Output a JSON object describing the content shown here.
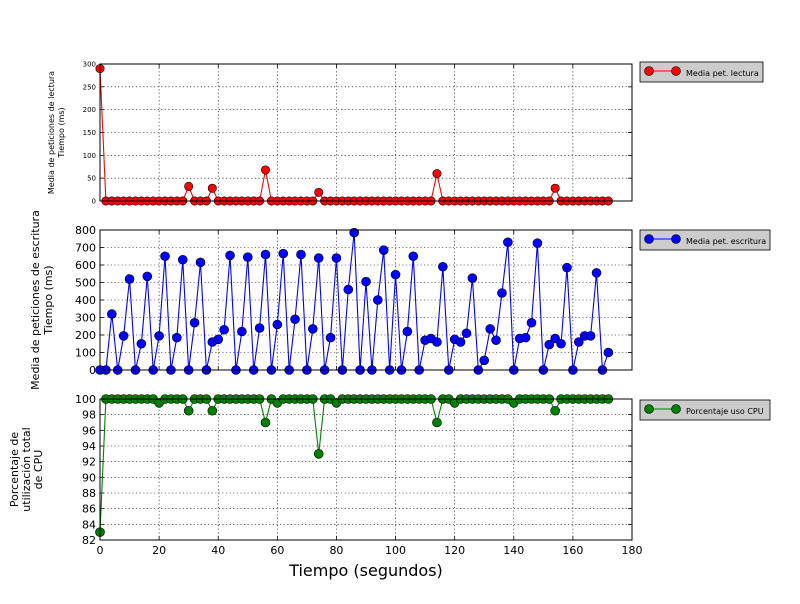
{
  "chart_data": [
    {
      "type": "line",
      "ylabel_lines": [
        "Media de peticiones de lectura",
        "Tiempo (ms)"
      ],
      "xlim": [
        0,
        180
      ],
      "ylim": [
        0,
        300
      ],
      "yticks": [
        0,
        50,
        100,
        150,
        200,
        250,
        300
      ],
      "grid": true,
      "legend_position": "right-outside",
      "series": [
        {
          "name": "Media pet. lectura",
          "color": "#ff0000",
          "points": [
            [
              0,
              290
            ],
            [
              2,
              0
            ],
            [
              4,
              0
            ],
            [
              6,
              0
            ],
            [
              8,
              0
            ],
            [
              10,
              0
            ],
            [
              12,
              0
            ],
            [
              14,
              0
            ],
            [
              16,
              0
            ],
            [
              18,
              0
            ],
            [
              20,
              0
            ],
            [
              22,
              0
            ],
            [
              24,
              0
            ],
            [
              26,
              0
            ],
            [
              28,
              0
            ],
            [
              30,
              32
            ],
            [
              32,
              0
            ],
            [
              34,
              0
            ],
            [
              36,
              0
            ],
            [
              38,
              28
            ],
            [
              40,
              0
            ],
            [
              42,
              0
            ],
            [
              44,
              0
            ],
            [
              46,
              0
            ],
            [
              48,
              0
            ],
            [
              50,
              0
            ],
            [
              52,
              0
            ],
            [
              54,
              0
            ],
            [
              56,
              68
            ],
            [
              58,
              0
            ],
            [
              60,
              0
            ],
            [
              62,
              0
            ],
            [
              64,
              0
            ],
            [
              66,
              0
            ],
            [
              68,
              0
            ],
            [
              70,
              0
            ],
            [
              72,
              0
            ],
            [
              74,
              19
            ],
            [
              76,
              0
            ],
            [
              78,
              0
            ],
            [
              80,
              0
            ],
            [
              82,
              0
            ],
            [
              84,
              0
            ],
            [
              86,
              0
            ],
            [
              88,
              0
            ],
            [
              90,
              0
            ],
            [
              92,
              0
            ],
            [
              94,
              0
            ],
            [
              96,
              0
            ],
            [
              98,
              0
            ],
            [
              100,
              0
            ],
            [
              102,
              0
            ],
            [
              104,
              0
            ],
            [
              106,
              0
            ],
            [
              108,
              0
            ],
            [
              110,
              0
            ],
            [
              112,
              0
            ],
            [
              114,
              60
            ],
            [
              116,
              0
            ],
            [
              118,
              0
            ],
            [
              120,
              0
            ],
            [
              122,
              0
            ],
            [
              124,
              0
            ],
            [
              126,
              0
            ],
            [
              128,
              0
            ],
            [
              130,
              0
            ],
            [
              132,
              0
            ],
            [
              134,
              0
            ],
            [
              136,
              0
            ],
            [
              138,
              0
            ],
            [
              140,
              0
            ],
            [
              142,
              0
            ],
            [
              144,
              0
            ],
            [
              146,
              0
            ],
            [
              148,
              0
            ],
            [
              150,
              0
            ],
            [
              152,
              0
            ],
            [
              154,
              28
            ],
            [
              156,
              0
            ],
            [
              158,
              0
            ],
            [
              160,
              0
            ],
            [
              162,
              0
            ],
            [
              164,
              0
            ],
            [
              166,
              0
            ],
            [
              168,
              0
            ],
            [
              170,
              0
            ],
            [
              172,
              0
            ]
          ]
        }
      ]
    },
    {
      "type": "line",
      "ylabel_lines": [
        "Media de peticiones de escritura",
        "Tiempo (ms)"
      ],
      "xlim": [
        0,
        180
      ],
      "ylim": [
        0,
        800
      ],
      "yticks": [
        0,
        100,
        200,
        300,
        400,
        500,
        600,
        700,
        800
      ],
      "grid": true,
      "legend_position": "right-outside",
      "series": [
        {
          "name": "Media pet. escritura",
          "color": "#0000ff",
          "points": [
            [
              0,
              0
            ],
            [
              2,
              0
            ],
            [
              4,
              320
            ],
            [
              6,
              0
            ],
            [
              8,
              195
            ],
            [
              10,
              520
            ],
            [
              12,
              0
            ],
            [
              14,
              150
            ],
            [
              16,
              535
            ],
            [
              18,
              0
            ],
            [
              20,
              195
            ],
            [
              22,
              650
            ],
            [
              24,
              0
            ],
            [
              26,
              185
            ],
            [
              28,
              630
            ],
            [
              30,
              0
            ],
            [
              32,
              270
            ],
            [
              34,
              615
            ],
            [
              36,
              0
            ],
            [
              38,
              160
            ],
            [
              40,
              175
            ],
            [
              42,
              230
            ],
            [
              44,
              655
            ],
            [
              46,
              0
            ],
            [
              48,
              220
            ],
            [
              50,
              645
            ],
            [
              52,
              0
            ],
            [
              54,
              240
            ],
            [
              56,
              660
            ],
            [
              58,
              0
            ],
            [
              60,
              260
            ],
            [
              62,
              665
            ],
            [
              64,
              0
            ],
            [
              66,
              290
            ],
            [
              68,
              660
            ],
            [
              70,
              0
            ],
            [
              72,
              235
            ],
            [
              74,
              640
            ],
            [
              76,
              0
            ],
            [
              78,
              185
            ],
            [
              80,
              640
            ],
            [
              82,
              0
            ],
            [
              84,
              460
            ],
            [
              86,
              785
            ],
            [
              88,
              0
            ],
            [
              90,
              505
            ],
            [
              92,
              0
            ],
            [
              94,
              400
            ],
            [
              96,
              685
            ],
            [
              98,
              0
            ],
            [
              100,
              545
            ],
            [
              102,
              0
            ],
            [
              104,
              220
            ],
            [
              106,
              650
            ],
            [
              108,
              0
            ],
            [
              110,
              170
            ],
            [
              112,
              180
            ],
            [
              114,
              160
            ],
            [
              116,
              590
            ],
            [
              118,
              0
            ],
            [
              120,
              175
            ],
            [
              122,
              160
            ],
            [
              124,
              210
            ],
            [
              126,
              525
            ],
            [
              128,
              0
            ],
            [
              130,
              55
            ],
            [
              132,
              235
            ],
            [
              134,
              170
            ],
            [
              136,
              440
            ],
            [
              138,
              730
            ],
            [
              140,
              0
            ],
            [
              142,
              180
            ],
            [
              144,
              185
            ],
            [
              146,
              270
            ],
            [
              148,
              725
            ],
            [
              150,
              0
            ],
            [
              152,
              145
            ],
            [
              154,
              180
            ],
            [
              156,
              150
            ],
            [
              158,
              585
            ],
            [
              160,
              0
            ],
            [
              162,
              160
            ],
            [
              164,
              195
            ],
            [
              166,
              195
            ],
            [
              168,
              555
            ],
            [
              170,
              0
            ],
            [
              172,
              100
            ]
          ]
        }
      ]
    },
    {
      "type": "line",
      "ylabel_lines": [
        "Porcentaje de",
        "utilización total",
        "de CPU"
      ],
      "xlabel": "Tiempo (segundos)",
      "xlim": [
        0,
        180
      ],
      "xticks": [
        0,
        20,
        40,
        60,
        80,
        100,
        120,
        140,
        160,
        180
      ],
      "ylim": [
        82,
        100
      ],
      "yticks": [
        82,
        84,
        86,
        88,
        90,
        92,
        94,
        96,
        98,
        100
      ],
      "grid": true,
      "legend_position": "right-outside",
      "series": [
        {
          "name": "Porcentaje uso CPU",
          "color": "#008000",
          "points": [
            [
              0,
              83
            ],
            [
              2,
              100
            ],
            [
              4,
              100
            ],
            [
              6,
              100
            ],
            [
              8,
              100
            ],
            [
              10,
              100
            ],
            [
              12,
              100
            ],
            [
              14,
              100
            ],
            [
              16,
              100
            ],
            [
              18,
              100
            ],
            [
              20,
              99.5
            ],
            [
              22,
              100
            ],
            [
              24,
              100
            ],
            [
              26,
              100
            ],
            [
              28,
              100
            ],
            [
              30,
              98.5
            ],
            [
              32,
              100
            ],
            [
              34,
              100
            ],
            [
              36,
              100
            ],
            [
              38,
              98.5
            ],
            [
              40,
              100
            ],
            [
              42,
              100
            ],
            [
              44,
              100
            ],
            [
              46,
              100
            ],
            [
              48,
              100
            ],
            [
              50,
              100
            ],
            [
              52,
              100
            ],
            [
              54,
              100
            ],
            [
              56,
              97
            ],
            [
              58,
              100
            ],
            [
              60,
              99.5
            ],
            [
              62,
              100
            ],
            [
              64,
              100
            ],
            [
              66,
              100
            ],
            [
              68,
              100
            ],
            [
              70,
              100
            ],
            [
              72,
              100
            ],
            [
              74,
              93
            ],
            [
              76,
              100
            ],
            [
              78,
              100
            ],
            [
              80,
              99.5
            ],
            [
              82,
              100
            ],
            [
              84,
              100
            ],
            [
              86,
              100
            ],
            [
              88,
              100
            ],
            [
              90,
              100
            ],
            [
              92,
              100
            ],
            [
              94,
              100
            ],
            [
              96,
              100
            ],
            [
              98,
              100
            ],
            [
              100,
              100
            ],
            [
              102,
              100
            ],
            [
              104,
              100
            ],
            [
              106,
              100
            ],
            [
              108,
              100
            ],
            [
              110,
              100
            ],
            [
              112,
              100
            ],
            [
              114,
              97
            ],
            [
              116,
              100
            ],
            [
              118,
              100
            ],
            [
              120,
              99.5
            ],
            [
              122,
              100
            ],
            [
              124,
              100
            ],
            [
              126,
              100
            ],
            [
              128,
              100
            ],
            [
              130,
              100
            ],
            [
              132,
              100
            ],
            [
              134,
              100
            ],
            [
              136,
              100
            ],
            [
              138,
              100
            ],
            [
              140,
              99.5
            ],
            [
              142,
              100
            ],
            [
              144,
              100
            ],
            [
              146,
              100
            ],
            [
              148,
              100
            ],
            [
              150,
              100
            ],
            [
              152,
              100
            ],
            [
              154,
              98.5
            ],
            [
              156,
              100
            ],
            [
              158,
              100
            ],
            [
              160,
              100
            ],
            [
              162,
              100
            ],
            [
              164,
              100
            ],
            [
              166,
              100
            ],
            [
              168,
              100
            ],
            [
              170,
              100
            ],
            [
              172,
              100
            ]
          ]
        }
      ]
    }
  ]
}
